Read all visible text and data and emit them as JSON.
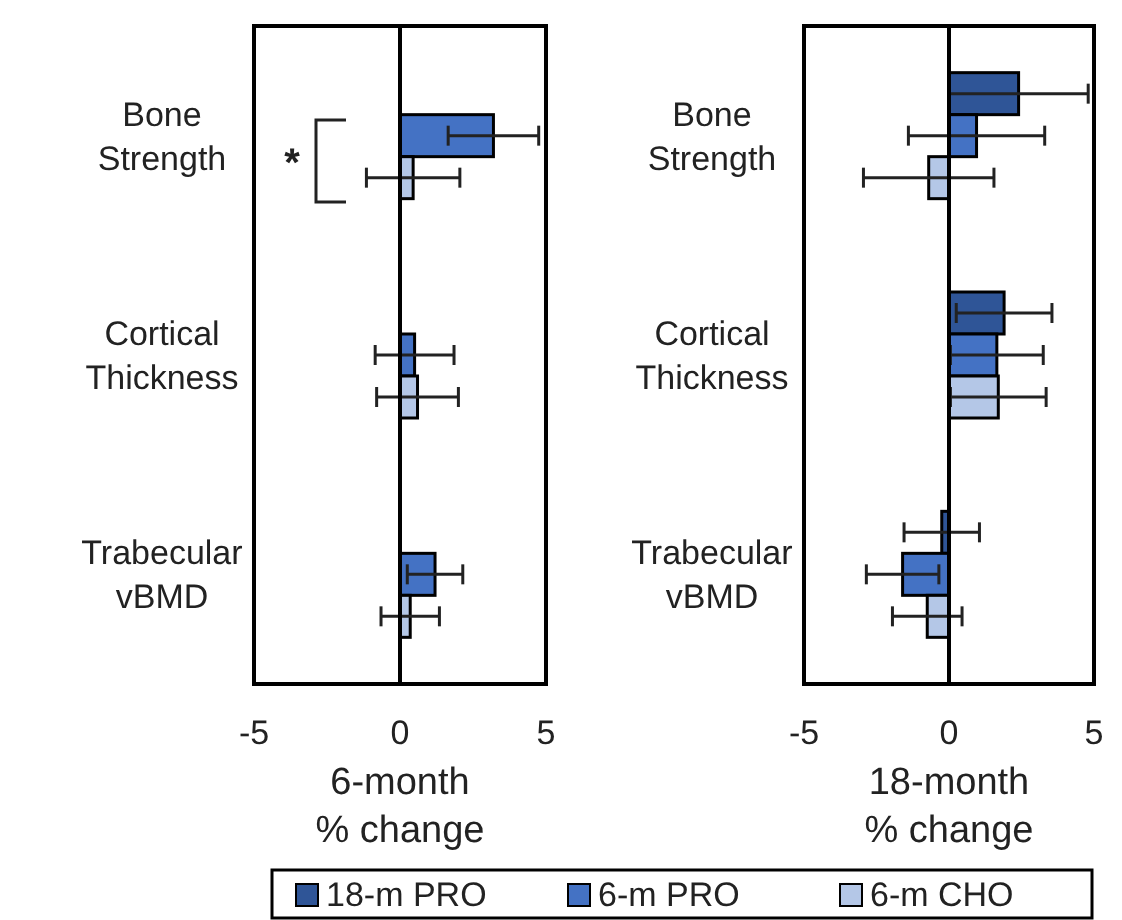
{
  "chart_data": [
    {
      "type": "bar",
      "orientation": "horizontal",
      "categories": [
        "Bone Strength",
        "Cortical Thickness",
        "Trabecular vBMD"
      ],
      "xlabel": "6-month % change",
      "xlim": [
        -5,
        5
      ],
      "xticks": [
        -5,
        0,
        5
      ],
      "annotations": [
        "*"
      ],
      "series": [
        {
          "color": "#4472c4",
          "values": [
            3.2,
            0.5,
            1.2
          ],
          "errors": [
            1.55,
            1.35,
            0.95
          ]
        },
        {
          "color": "#b4c7e7",
          "values": [
            0.45,
            0.6,
            0.35
          ],
          "errors": [
            1.6,
            1.4,
            1.0
          ]
        }
      ]
    },
    {
      "type": "bar",
      "orientation": "horizontal",
      "categories": [
        "Bone Strength",
        "Cortical Thickness",
        "Trabecular vBMD"
      ],
      "xlabel": "18-month % change",
      "xlim": [
        -5,
        5
      ],
      "xticks": [
        -5,
        0,
        5
      ],
      "legend": "bottom",
      "series": [
        {
          "name": "18-m PRO",
          "color": "#2f5597",
          "values": [
            2.4,
            1.9,
            -0.25
          ],
          "errors": [
            2.4,
            1.65,
            1.3
          ]
        },
        {
          "name": "6-m PRO",
          "color": "#4472c4",
          "values": [
            0.95,
            1.65,
            -1.6
          ],
          "errors": [
            2.35,
            1.6,
            1.25
          ]
        },
        {
          "name": "6-m CHO",
          "color": "#b4c7e7",
          "values": [
            -0.7,
            1.7,
            -0.75
          ],
          "errors": [
            2.25,
            1.65,
            1.2
          ]
        }
      ]
    }
  ]
}
